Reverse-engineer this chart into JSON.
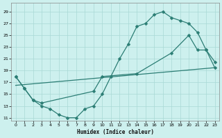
{
  "xlabel": "Humidex (Indice chaleur)",
  "background_color": "#cdf0ee",
  "grid_color": "#a8d8d5",
  "line_color": "#2b7d74",
  "curve1_x": [
    0,
    1,
    2,
    3,
    4,
    5,
    6,
    7,
    8,
    9,
    10,
    11,
    12,
    13,
    14,
    15,
    16,
    17,
    18,
    19,
    20,
    21,
    22,
    23
  ],
  "curve1_y": [
    18.0,
    16.0,
    14.0,
    13.0,
    12.5,
    11.5,
    11.0,
    11.0,
    12.5,
    13.0,
    15.0,
    18.0,
    21.0,
    23.5,
    26.5,
    27.0,
    28.5,
    29.0,
    28.0,
    27.5,
    27.0,
    25.5,
    22.5,
    19.5
  ],
  "curve2_x": [
    0,
    1,
    2,
    3,
    4,
    5,
    6,
    7,
    8,
    9,
    10,
    11,
    12,
    13,
    14,
    15,
    16,
    17,
    18,
    19,
    20,
    21,
    22,
    23
  ],
  "curve2_y": [
    18.0,
    16.0,
    14.0,
    13.5,
    null,
    null,
    null,
    null,
    null,
    15.5,
    18.0,
    null,
    null,
    null,
    18.5,
    null,
    null,
    null,
    22.0,
    null,
    25.0,
    22.5,
    22.5,
    20.5
  ],
  "curve3_x": [
    0,
    23
  ],
  "curve3_y": [
    16.5,
    19.5
  ],
  "ylim": [
    10.5,
    30.5
  ],
  "xlim": [
    -0.5,
    23.5
  ],
  "yticks": [
    11,
    13,
    15,
    17,
    19,
    21,
    23,
    25,
    27,
    29
  ],
  "xticks": [
    0,
    1,
    2,
    3,
    4,
    5,
    6,
    7,
    8,
    9,
    10,
    11,
    12,
    13,
    14,
    15,
    16,
    17,
    18,
    19,
    20,
    21,
    22,
    23
  ],
  "linewidth": 0.9,
  "markersize": 2.5
}
